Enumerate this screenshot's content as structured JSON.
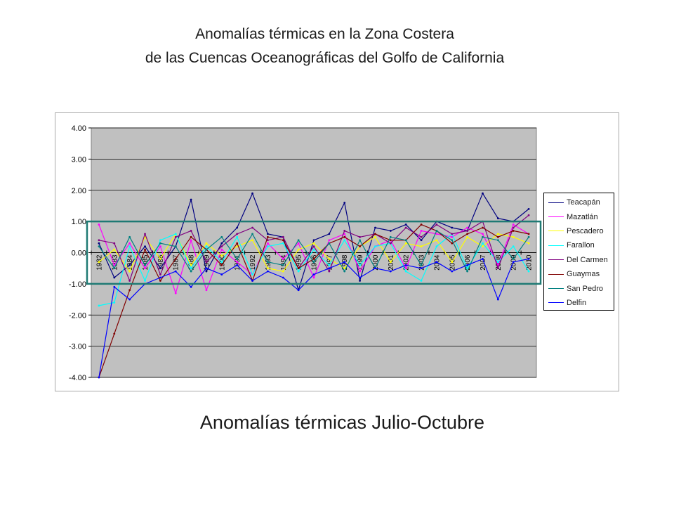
{
  "title": {
    "line1": "Anomalías térmicas en la Zona Costera",
    "line2": "de las Cuencas Oceanográficas del Golfo de California"
  },
  "caption": "Anomalías térmicas Julio-Octubre",
  "colors": {
    "plot_background": "#c0c0c0",
    "gridline": "#000000",
    "highlight_box": "#1f7a74"
  },
  "chart_data": {
    "type": "line",
    "title": "",
    "xlabel": "",
    "ylabel": "",
    "ylim": [
      -4,
      4
    ],
    "yticks": [
      "4.00",
      "3.00",
      "2.00",
      "1.00",
      "0.00",
      "-1.00",
      "-2.00",
      "-3.00",
      "-4.00"
    ],
    "grid": true,
    "legend_position": "right",
    "categories": [
      "1982",
      "1983",
      "1984",
      "1985",
      "1986",
      "1987",
      "1988",
      "1989",
      "1990",
      "1991",
      "1992",
      "1993",
      "1994",
      "1995",
      "1996",
      "1997",
      "1998",
      "1999",
      "2000",
      "2001",
      "2002",
      "2003",
      "2004",
      "2005",
      "2006",
      "2007",
      "2008",
      "2009",
      "2010"
    ],
    "highlight_range": [
      -1,
      1
    ],
    "series": [
      {
        "name": "Teacapán",
        "color": "#000080",
        "values": [
          0.3,
          -0.8,
          -0.4,
          0.2,
          -0.5,
          0.2,
          1.7,
          -0.6,
          0.3,
          0.8,
          1.9,
          0.6,
          0.5,
          -1.2,
          0.4,
          0.6,
          1.6,
          -0.9,
          0.8,
          0.7,
          0.9,
          0.4,
          1.0,
          0.8,
          0.7,
          1.9,
          1.1,
          1.0,
          1.4
        ]
      },
      {
        "name": "Mazatlán",
        "color": "#ff00ff",
        "values": [
          0.9,
          -0.4,
          0.3,
          -0.5,
          0.2,
          -1.3,
          0.4,
          -1.2,
          0.1,
          -0.3,
          -0.7,
          0.3,
          -0.2,
          0.3,
          -0.8,
          0.4,
          0.6,
          -0.6,
          0.2,
          0.4,
          -0.5,
          0.7,
          0.6,
          0.5,
          0.8,
          0.6,
          -0.4,
          0.9,
          0.6
        ]
      },
      {
        "name": "Pescadero",
        "color": "#ffff00",
        "values": [
          -0.3,
          0.1,
          -0.6,
          0.5,
          -0.2,
          0.6,
          -0.4,
          0.3,
          -0.1,
          0.2,
          0.4,
          -0.5,
          -0.6,
          0.1,
          0.3,
          -0.2,
          -0.5,
          0.2,
          0.5,
          -0.3,
          0.3,
          0.2,
          0.4,
          -0.3,
          0.5,
          0.2,
          0.6,
          0.5,
          0.3
        ]
      },
      {
        "name": "Farallon",
        "color": "#00ffff",
        "values": [
          -1.7,
          -1.6,
          0.2,
          -0.9,
          0.4,
          0.6,
          -0.5,
          0.2,
          -0.3,
          0.5,
          -0.7,
          0.2,
          0.3,
          -0.6,
          0.1,
          -0.4,
          0.4,
          -0.4,
          0.2,
          0.3,
          -0.6,
          -0.9,
          0.2,
          0.6,
          -0.5,
          0.3,
          -0.3,
          0.2,
          -0.6
        ]
      },
      {
        "name": "Del Carmen",
        "color": "#800080",
        "values": [
          0.4,
          0.3,
          -0.9,
          0.6,
          -0.7,
          0.5,
          0.7,
          -0.3,
          0.2,
          0.6,
          0.8,
          0.4,
          0.5,
          -0.5,
          0.2,
          -0.6,
          0.7,
          0.5,
          0.6,
          0.3,
          0.8,
          0.5,
          0.9,
          0.6,
          0.7,
          1.0,
          -0.5,
          0.8,
          1.2
        ]
      },
      {
        "name": "Guaymas",
        "color": "#800000",
        "values": [
          -4.0,
          -2.6,
          -1.2,
          0.1,
          -0.9,
          -0.2,
          0.5,
          0.1,
          -0.4,
          0.3,
          -0.9,
          0.5,
          0.4,
          -0.5,
          -0.2,
          0.3,
          0.5,
          0.2,
          0.6,
          0.4,
          0.4,
          0.9,
          0.7,
          0.3,
          0.6,
          0.8,
          0.5,
          0.7,
          0.6
        ]
      },
      {
        "name": "San Pedro",
        "color": "#008080",
        "values": [
          0.2,
          -0.5,
          0.5,
          -0.4,
          0.3,
          0.2,
          -0.6,
          0.1,
          0.5,
          -0.2,
          0.6,
          -0.3,
          -0.4,
          0.4,
          -0.3,
          0.3,
          -0.6,
          0.4,
          -0.5,
          0.5,
          0.4,
          -0.4,
          0.7,
          0.4,
          -0.6,
          0.5,
          0.4,
          -0.2,
          0.5
        ]
      },
      {
        "name": "Delfin",
        "color": "#0000ff",
        "values": [
          -4.0,
          -1.1,
          -1.5,
          -1.0,
          -0.8,
          -0.6,
          -1.1,
          -0.5,
          -0.7,
          -0.4,
          -0.9,
          -0.6,
          -0.8,
          -1.2,
          -0.7,
          -0.5,
          -0.3,
          -0.8,
          -0.5,
          -0.6,
          -0.4,
          -0.5,
          -0.3,
          -0.6,
          -0.4,
          -0.2,
          -1.5,
          -0.3,
          -0.2
        ]
      }
    ]
  }
}
